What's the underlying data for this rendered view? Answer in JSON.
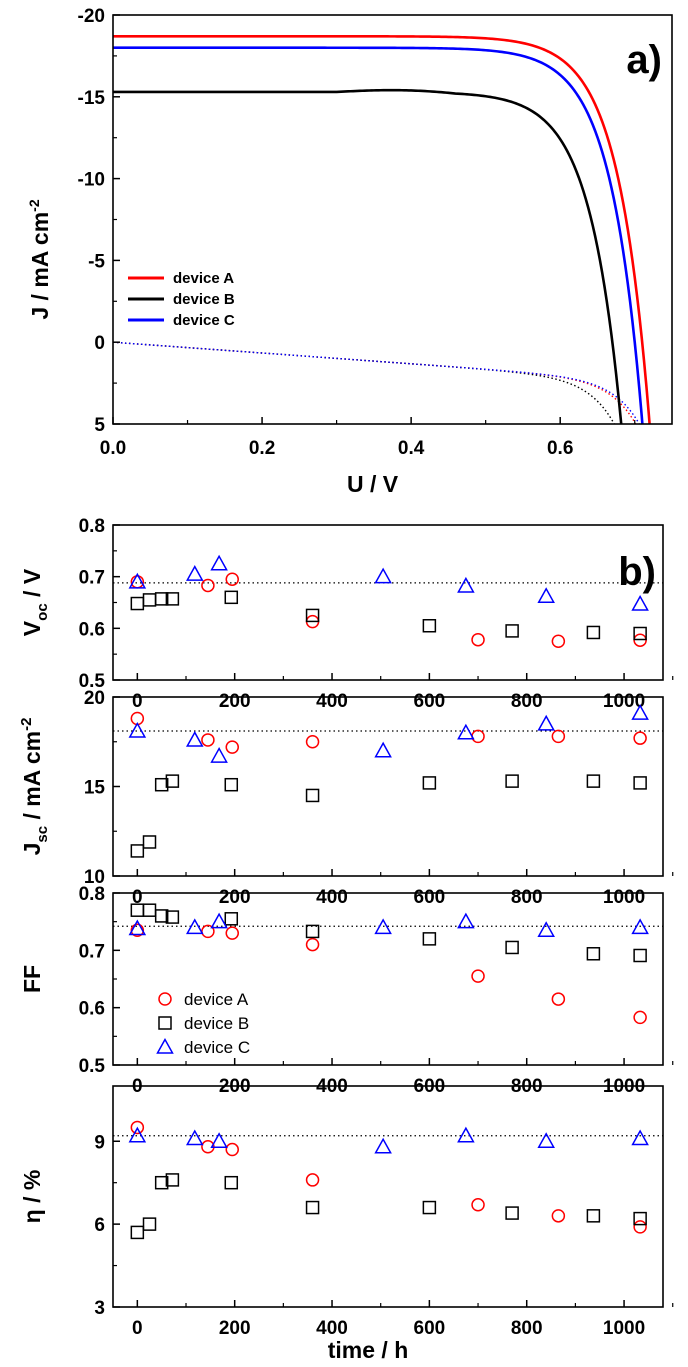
{
  "chart_data": [
    {
      "type": "line",
      "panel_label": "a)",
      "xlabel": "U / V",
      "ylabel_parts": [
        "J / mA cm",
        "-2"
      ],
      "xlim": [
        0,
        0.75
      ],
      "ylim": [
        5,
        -20
      ],
      "xticks": [
        "0.0",
        "0.2",
        "0.4",
        "0.6"
      ],
      "xtick_values": [
        0,
        0.2,
        0.4,
        0.6
      ],
      "yticks": [
        "-20",
        "-15",
        "-10",
        "-5",
        "0",
        "5"
      ],
      "ytick_values": [
        -20,
        -15,
        -10,
        -5,
        0,
        5
      ],
      "series": [
        {
          "name": "device A",
          "color": "#ff0000",
          "jsc": -18.7,
          "voc": 0.71,
          "dark_voc": 0.66
        },
        {
          "name": "device B",
          "color": "#000000",
          "jsc": -15.3,
          "voc": 0.67,
          "dark_voc": 0.63
        },
        {
          "name": "device C",
          "color": "#0000ff",
          "jsc": -18.0,
          "voc": 0.7,
          "dark_voc": 0.665
        }
      ],
      "legend": [
        "device A",
        "device B",
        "device C"
      ]
    },
    {
      "type": "scatter",
      "panel_label": "b)",
      "ylabel_main": "V",
      "ylabel_sub": "oc",
      "ylabel_rest": " / V",
      "ylim": [
        0.5,
        0.8
      ],
      "yticks": [
        "0.5",
        "0.6",
        "0.7",
        "0.8"
      ],
      "ytick_values": [
        0.5,
        0.6,
        0.7,
        0.8
      ],
      "reference_line": 0.688,
      "series": [
        {
          "name": "device A",
          "x": [
            0,
            145,
            195,
            360,
            700,
            865,
            1033
          ],
          "values": [
            0.69,
            0.683,
            0.695,
            0.613,
            0.578,
            0.575,
            0.577
          ]
        },
        {
          "name": "device B",
          "x": [
            0,
            25,
            50,
            72,
            193,
            360,
            600,
            770,
            937,
            1033
          ],
          "values": [
            0.648,
            0.655,
            0.657,
            0.657,
            0.66,
            0.625,
            0.605,
            0.595,
            0.592,
            0.59
          ]
        },
        {
          "name": "device C",
          "x": [
            0,
            118,
            168,
            505,
            675,
            840,
            1033
          ],
          "values": [
            0.69,
            0.705,
            0.725,
            0.7,
            0.682,
            0.662,
            0.647
          ]
        }
      ]
    },
    {
      "type": "scatter",
      "ylabel_main": "J",
      "ylabel_sub": "sc",
      "ylabel_rest": " / mA cm",
      "ylabel_sup": "-2",
      "ylim": [
        10,
        20
      ],
      "yticks": [
        "10",
        "15",
        "20"
      ],
      "ytick_values": [
        10,
        15,
        20
      ],
      "reference_line": 18.1,
      "series": [
        {
          "name": "device A",
          "x": [
            0,
            145,
            195,
            360,
            700,
            865,
            1033
          ],
          "values": [
            18.8,
            17.6,
            17.2,
            17.5,
            17.8,
            17.8,
            17.7
          ]
        },
        {
          "name": "device B",
          "x": [
            0,
            25,
            50,
            72,
            193,
            360,
            600,
            770,
            937,
            1033
          ],
          "values": [
            11.4,
            11.9,
            15.1,
            15.3,
            15.1,
            14.5,
            15.2,
            15.3,
            15.3,
            15.2
          ]
        },
        {
          "name": "device C",
          "x": [
            0,
            118,
            168,
            505,
            675,
            840,
            1033
          ],
          "values": [
            18.1,
            17.6,
            16.7,
            17.0,
            18.0,
            18.5,
            19.1
          ]
        }
      ]
    },
    {
      "type": "scatter",
      "ylabel_main": "FF",
      "ylim": [
        0.5,
        0.8
      ],
      "yticks": [
        "0.5",
        "0.6",
        "0.7",
        "0.8"
      ],
      "ytick_values": [
        0.5,
        0.6,
        0.7,
        0.8
      ],
      "reference_line": 0.742,
      "legend": [
        "device A",
        "device B",
        "device C"
      ],
      "series": [
        {
          "name": "device A",
          "x": [
            0,
            145,
            195,
            360,
            700,
            865,
            1033
          ],
          "values": [
            0.735,
            0.733,
            0.73,
            0.71,
            0.655,
            0.615,
            0.583
          ]
        },
        {
          "name": "device B",
          "x": [
            0,
            25,
            50,
            72,
            193,
            360,
            600,
            770,
            937,
            1033
          ],
          "values": [
            0.77,
            0.77,
            0.76,
            0.758,
            0.755,
            0.733,
            0.72,
            0.705,
            0.694,
            0.691
          ]
        },
        {
          "name": "device C",
          "x": [
            0,
            118,
            168,
            505,
            675,
            840,
            1033
          ],
          "values": [
            0.738,
            0.74,
            0.75,
            0.74,
            0.75,
            0.735,
            0.74
          ]
        }
      ]
    },
    {
      "type": "scatter",
      "ylabel_main": "η / %",
      "ylim": [
        3,
        11
      ],
      "yticks": [
        "3",
        "6",
        "9"
      ],
      "ytick_values": [
        3,
        6,
        9
      ],
      "reference_line": 9.2,
      "xlabel": "time / h",
      "xlim": [
        -50,
        1080
      ],
      "xticks": [
        "0",
        "200",
        "400",
        "600",
        "800",
        "1000"
      ],
      "xtick_values": [
        0,
        200,
        400,
        600,
        800,
        1000
      ],
      "series": [
        {
          "name": "device A",
          "x": [
            0,
            145,
            195,
            360,
            700,
            865,
            1033
          ],
          "values": [
            9.5,
            8.8,
            8.7,
            7.6,
            6.7,
            6.3,
            5.9
          ]
        },
        {
          "name": "device B",
          "x": [
            0,
            25,
            50,
            72,
            193,
            360,
            600,
            770,
            937,
            1033
          ],
          "values": [
            5.7,
            6.0,
            7.5,
            7.6,
            7.5,
            6.6,
            6.6,
            6.4,
            6.3,
            6.2
          ]
        },
        {
          "name": "device C",
          "x": [
            0,
            118,
            168,
            505,
            675,
            840,
            1033
          ],
          "values": [
            9.2,
            9.1,
            9.0,
            8.8,
            9.2,
            9.0,
            9.1
          ]
        }
      ]
    }
  ],
  "marker_colors": {
    "device A": "#ff0000",
    "device B": "#000000",
    "device C": "#0000ff"
  }
}
